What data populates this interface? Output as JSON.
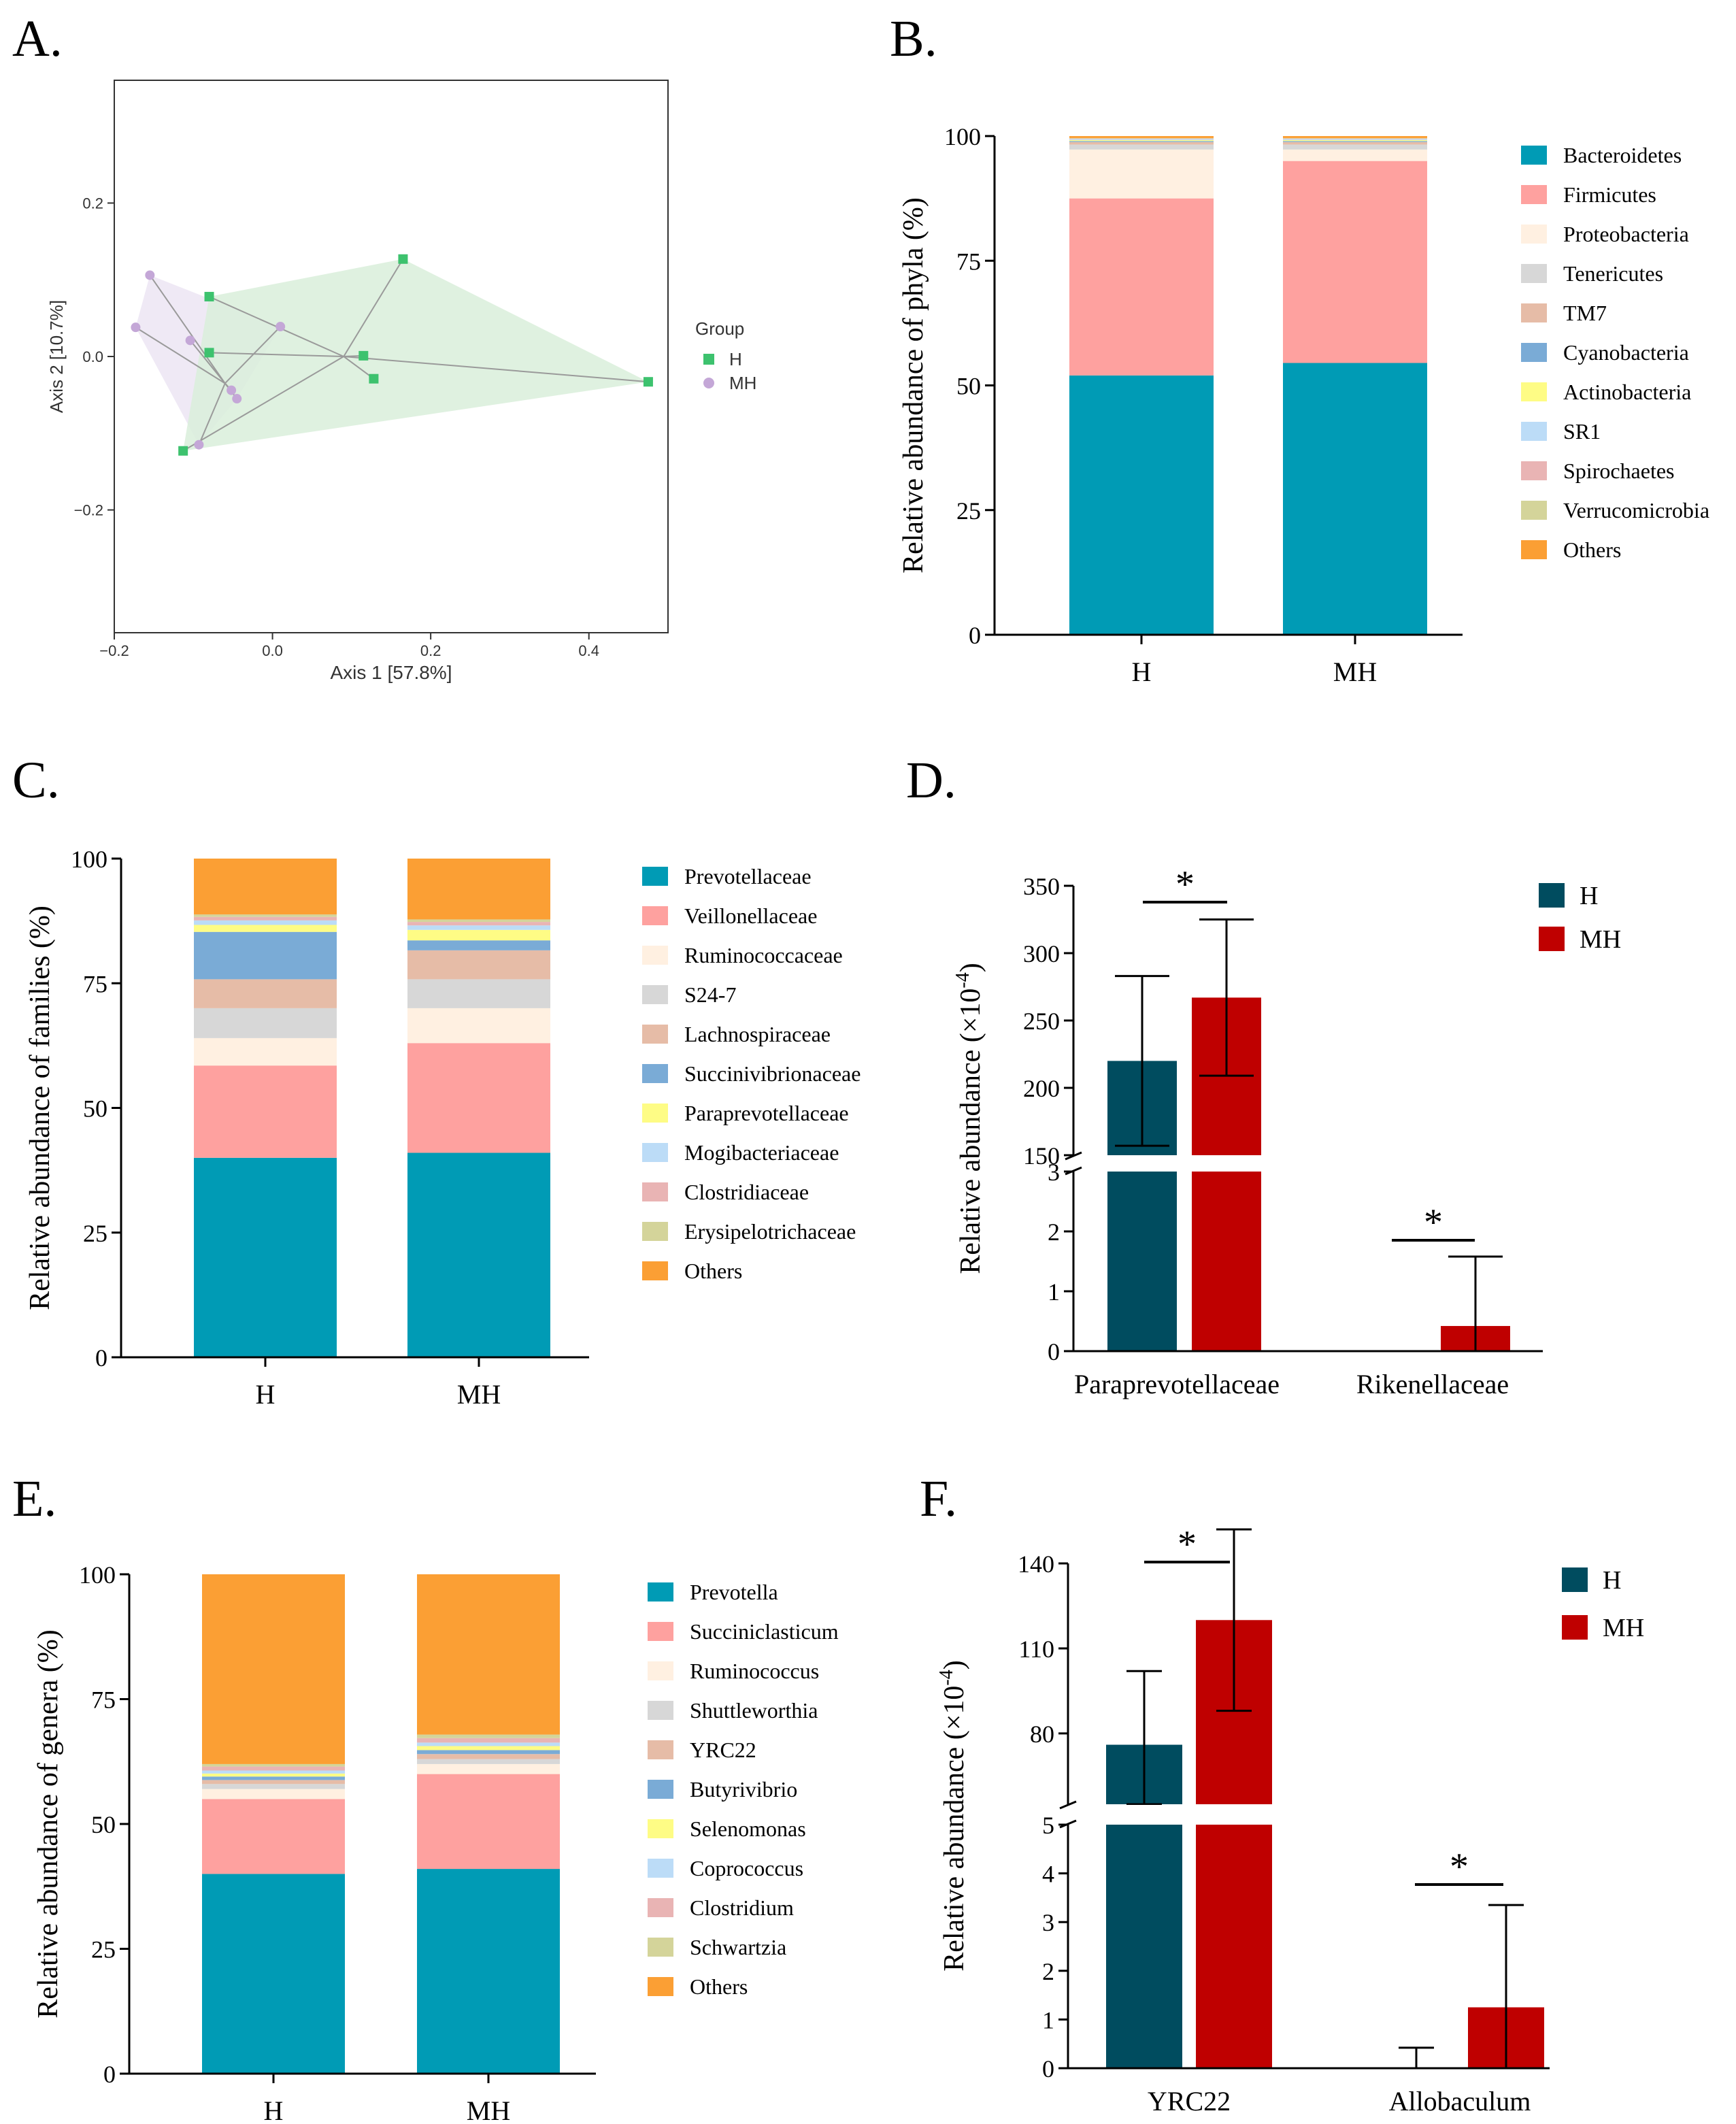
{
  "colors": {
    "bacteroidetes": "#009bb5",
    "firmicutes": "#fea19f",
    "proteobacteria": "#fff0e1",
    "tenericutes": "#d7d7d7",
    "tm7": "#e6bca7",
    "cyanobacteria": "#7aabd6",
    "actinobacteria": "#fefc85",
    "sr1": "#bcdcf7",
    "spirochaetes": "#e9b4b4",
    "verrucomicrobia": "#d4d49a",
    "others": "#fb9f34",
    "H_dark": "#004c5f",
    "MH_red": "#bf0000",
    "pcoa_H": "#3dc26e",
    "pcoa_MH": "#c4a7d7",
    "hull_H": "#d9efdb",
    "hull_MH": "#ebe3f2"
  },
  "chart_data": [
    {
      "panel": "A.",
      "type": "scatter",
      "xlabel": "Axis 1 [57.8%]",
      "ylabel": "Axis 2 [10.7%]",
      "xlim": [
        -0.2,
        0.5
      ],
      "ylim": [
        -0.36,
        0.36
      ],
      "xticks": [
        -0.2,
        0.0,
        0.2,
        0.4
      ],
      "xtick_labels": [
        "−0.2",
        "0.0",
        "0.2",
        "0.4"
      ],
      "yticks": [
        -0.2,
        0.0,
        0.2
      ],
      "ytick_labels": [
        "−0.2",
        "0.0",
        "0.2"
      ],
      "legend_title": "Group",
      "series": [
        {
          "name": "H",
          "centroid": [
            0.09,
            0.0
          ],
          "points": [
            [
              0.165,
              0.127
            ],
            [
              -0.08,
              0.078
            ],
            [
              -0.08,
              0.005
            ],
            [
              0.115,
              0.001
            ],
            [
              0.475,
              -0.033
            ],
            [
              0.128,
              -0.029
            ],
            [
              -0.113,
              -0.123
            ]
          ]
        },
        {
          "name": "MH",
          "centroid": [
            -0.06,
            -0.035
          ],
          "points": [
            [
              -0.155,
              0.106
            ],
            [
              -0.173,
              0.038
            ],
            [
              -0.104,
              0.021
            ],
            [
              0.01,
              0.039
            ],
            [
              -0.052,
              -0.044
            ],
            [
              -0.045,
              -0.055
            ],
            [
              -0.093,
              -0.115
            ]
          ]
        }
      ]
    },
    {
      "panel": "B.",
      "type": "bar",
      "stacked": true,
      "ylabel": "Relative abundance of phyla (%)",
      "ylim": [
        0,
        100
      ],
      "yticks": [
        0,
        25,
        50,
        75,
        100
      ],
      "categories": [
        "H",
        "MH"
      ],
      "series": [
        {
          "name": "Bacteroidetes",
          "values": [
            52,
            54.5
          ]
        },
        {
          "name": "Firmicutes",
          "values": [
            35.5,
            40.5
          ]
        },
        {
          "name": "Proteobacteria",
          "values": [
            9.8,
            2.3
          ]
        },
        {
          "name": "Tenericutes",
          "values": [
            1.0,
            1.0
          ]
        },
        {
          "name": "TM7",
          "values": [
            0.5,
            0.5
          ]
        },
        {
          "name": "Cyanobacteria",
          "values": [
            0.2,
            0.2
          ]
        },
        {
          "name": "Actinobacteria",
          "values": [
            0.2,
            0.2
          ]
        },
        {
          "name": "SR1",
          "values": [
            0.2,
            0.2
          ]
        },
        {
          "name": "Spirochaetes",
          "values": [
            0.1,
            0.1
          ]
        },
        {
          "name": "Verrucomicrobia",
          "values": [
            0.1,
            0.1
          ]
        },
        {
          "name": "Others",
          "values": [
            0.4,
            0.4
          ]
        }
      ]
    },
    {
      "panel": "C.",
      "type": "bar",
      "stacked": true,
      "ylabel": "Relative abundance of families (%)",
      "ylim": [
        0,
        100
      ],
      "yticks": [
        0,
        25,
        50,
        75,
        100
      ],
      "categories": [
        "H",
        "MH"
      ],
      "series": [
        {
          "name": "Prevotellaceae",
          "values": [
            40,
            41
          ]
        },
        {
          "name": "Veillonellaceae",
          "values": [
            18.5,
            22
          ]
        },
        {
          "name": "Ruminococcaceae",
          "values": [
            5.5,
            7
          ]
        },
        {
          "name": "S24-7",
          "values": [
            6,
            5.8
          ]
        },
        {
          "name": "Lachnospiraceae",
          "values": [
            5.8,
            5.8
          ]
        },
        {
          "name": "Succinivibrionaceae",
          "values": [
            9.5,
            2
          ]
        },
        {
          "name": "Paraprevotellaceae",
          "values": [
            1.4,
            2.1
          ]
        },
        {
          "name": "Mogibacteriaceae",
          "values": [
            0.9,
            0.9
          ]
        },
        {
          "name": "Clostridiaceae",
          "values": [
            0.7,
            0.7
          ]
        },
        {
          "name": "Erysipelotrichaceae",
          "values": [
            0.5,
            0.5
          ]
        },
        {
          "name": "Others",
          "values": [
            11.2,
            12.2
          ]
        }
      ]
    },
    {
      "panel": "D.",
      "type": "bar",
      "broken_axis": true,
      "ylabel": "Relative abundance (×10",
      "ylabel_sup": "-4",
      "ylabel_end": ")",
      "upper_ylim": [
        150,
        350
      ],
      "upper_yticks": [
        150,
        200,
        250,
        300,
        350
      ],
      "lower_ylim": [
        0,
        3
      ],
      "lower_yticks": [
        0,
        1,
        2,
        3
      ],
      "categories": [
        "Paraprevotellaceae",
        "Rikenellaceae"
      ],
      "series": [
        {
          "name": "H",
          "values": [
            220,
            0
          ],
          "errors": [
            63,
            0
          ]
        },
        {
          "name": "MH",
          "values": [
            267,
            0.42
          ],
          "errors": [
            58,
            1.16
          ]
        }
      ],
      "significance": [
        "*",
        "*"
      ]
    },
    {
      "panel": "E.",
      "type": "bar",
      "stacked": true,
      "ylabel": "Relative abundance of genera (%)",
      "ylim": [
        0,
        100
      ],
      "yticks": [
        0,
        25,
        50,
        75,
        100
      ],
      "categories": [
        "H",
        "MH"
      ],
      "series": [
        {
          "name": "Prevotella",
          "values": [
            40,
            41
          ]
        },
        {
          "name": "Succiniclasticum",
          "values": [
            15,
            19
          ]
        },
        {
          "name": "Ruminococcus",
          "values": [
            2,
            2
          ]
        },
        {
          "name": "Shuttleworthia",
          "values": [
            1,
            1
          ]
        },
        {
          "name": "YRC22",
          "values": [
            0.8,
            1
          ]
        },
        {
          "name": "Butyrivibrio",
          "values": [
            0.7,
            0.8
          ]
        },
        {
          "name": "Selenomonas",
          "values": [
            0.6,
            0.8
          ]
        },
        {
          "name": "Coprococcus",
          "values": [
            0.6,
            0.7
          ]
        },
        {
          "name": "Clostridium",
          "values": [
            0.8,
            0.9
          ]
        },
        {
          "name": "Schwartzia",
          "values": [
            0.5,
            0.7
          ]
        },
        {
          "name": "Others",
          "values": [
            38,
            32.1
          ]
        }
      ]
    },
    {
      "panel": "F.",
      "type": "bar",
      "broken_axis": true,
      "ylabel": "Relative abundance (×10",
      "ylabel_sup": "-4",
      "ylabel_end": ")",
      "upper_ylim": [
        55,
        140
      ],
      "upper_yticks": [
        80,
        110,
        140
      ],
      "lower_ylim": [
        0,
        5
      ],
      "lower_yticks": [
        0,
        1,
        2,
        3,
        4,
        5
      ],
      "categories": [
        "YRC22",
        "Allobaculum"
      ],
      "series": [
        {
          "name": "H",
          "values": [
            76,
            0
          ],
          "errors": [
            26,
            0.42
          ]
        },
        {
          "name": "MH",
          "values": [
            120,
            1.25
          ],
          "errors": [
            32,
            2.1
          ]
        }
      ],
      "significance": [
        "*",
        "*"
      ]
    }
  ]
}
